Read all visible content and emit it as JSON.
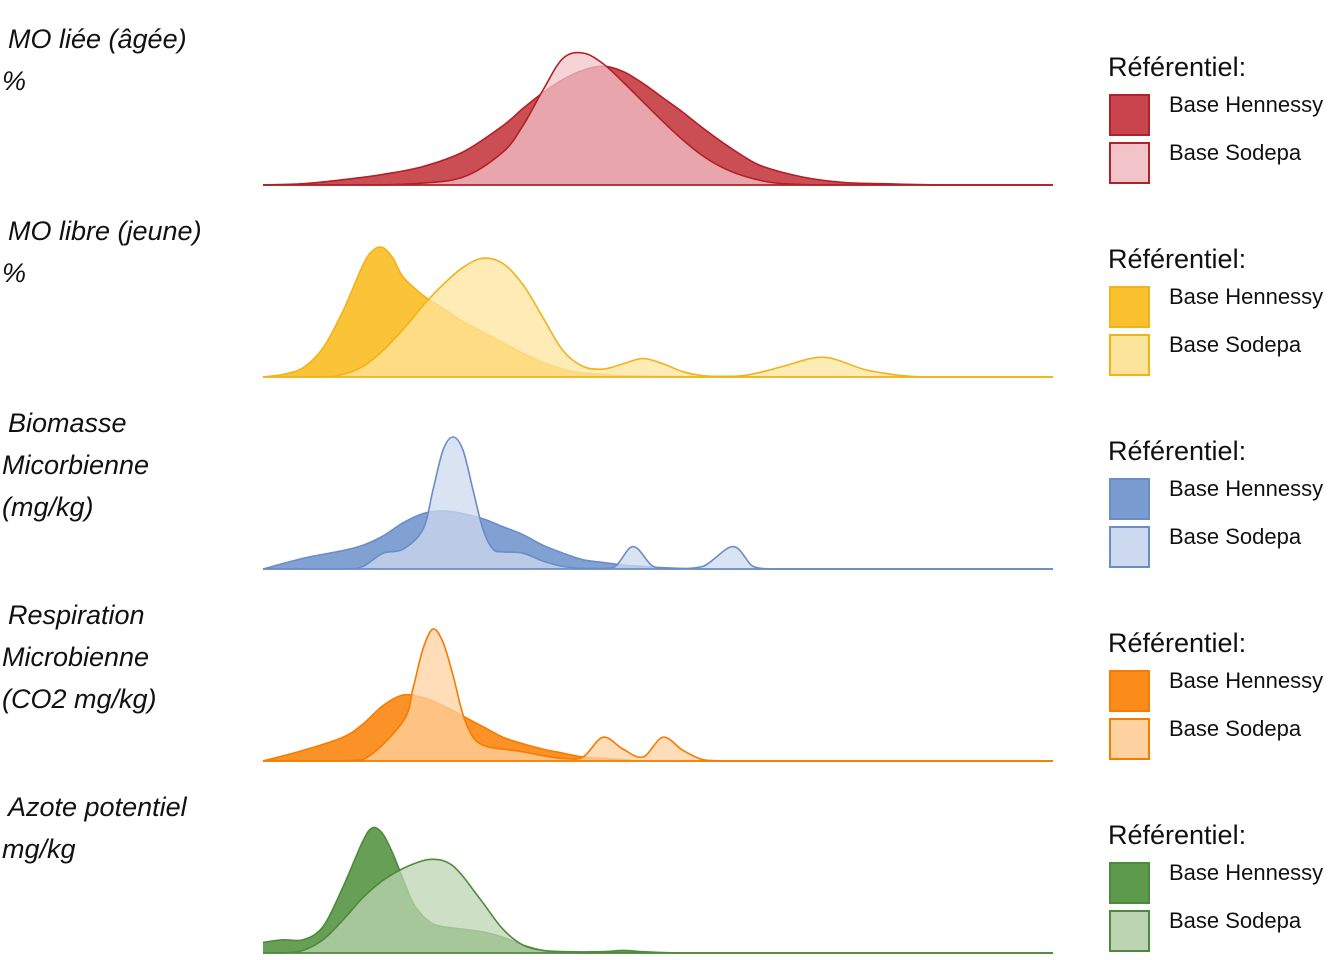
{
  "chart_data": [
    {
      "type": "area",
      "label_lines": [
        "MO liée (âgée)",
        "%"
      ],
      "legend_title": "Référentiel:",
      "series": [
        {
          "name": "Base Hennessy",
          "fill": "#c9444c",
          "stroke": "#b22028",
          "opacity": 0.95,
          "x": [
            0,
            40,
            80,
            120,
            160,
            200,
            240,
            260,
            280,
            300,
            320,
            340,
            360,
            380,
            400,
            420,
            440,
            460,
            480,
            500,
            540,
            580,
            620,
            680,
            740,
            790
          ],
          "y": [
            0,
            0.01,
            0.04,
            0.08,
            0.14,
            0.25,
            0.45,
            0.58,
            0.7,
            0.8,
            0.87,
            0.9,
            0.86,
            0.77,
            0.66,
            0.55,
            0.43,
            0.32,
            0.22,
            0.14,
            0.06,
            0.02,
            0.01,
            0,
            0,
            0
          ]
        },
        {
          "name": "Base Sodepa",
          "fill": "#f1c4c9",
          "stroke": "#b22028",
          "opacity": 0.75,
          "x": [
            0,
            100,
            150,
            200,
            240,
            260,
            280,
            300,
            320,
            340,
            360,
            380,
            400,
            420,
            440,
            460,
            480,
            500,
            520,
            560,
            600,
            650,
            700,
            790
          ],
          "y": [
            0,
            0,
            0.01,
            0.06,
            0.25,
            0.45,
            0.72,
            0.96,
            1.0,
            0.92,
            0.78,
            0.63,
            0.48,
            0.34,
            0.22,
            0.13,
            0.07,
            0.03,
            0.01,
            0,
            0,
            0,
            0,
            0
          ]
        }
      ]
    },
    {
      "type": "area",
      "label_lines": [
        "MO libre (jeune)",
        "%"
      ],
      "legend_title": "Référentiel:",
      "series": [
        {
          "name": "Base Hennessy",
          "fill": "#fbc02d",
          "stroke": "#f2b21a",
          "opacity": 0.95,
          "x": [
            0,
            20,
            40,
            60,
            80,
            100,
            110,
            120,
            130,
            140,
            160,
            180,
            200,
            220,
            240,
            260,
            280,
            300,
            320,
            340,
            360,
            400,
            440,
            480,
            520,
            580,
            640,
            700,
            790
          ],
          "y": [
            0,
            0.02,
            0.07,
            0.22,
            0.5,
            0.85,
            0.96,
            0.98,
            0.9,
            0.76,
            0.62,
            0.52,
            0.42,
            0.34,
            0.26,
            0.18,
            0.11,
            0.06,
            0.03,
            0.02,
            0.01,
            0.005,
            0,
            0,
            0,
            0,
            0,
            0,
            0
          ]
        },
        {
          "name": "Base Sodepa",
          "fill": "#fde49c",
          "stroke": "#f2b21a",
          "opacity": 0.75,
          "x": [
            0,
            60,
            80,
            100,
            120,
            140,
            160,
            180,
            200,
            220,
            240,
            260,
            280,
            300,
            320,
            340,
            360,
            380,
            400,
            420,
            440,
            460,
            480,
            500,
            520,
            560,
            600,
            620,
            640,
            660,
            680,
            720,
            790
          ],
          "y": [
            0,
            0,
            0.02,
            0.08,
            0.2,
            0.36,
            0.54,
            0.7,
            0.83,
            0.9,
            0.86,
            0.7,
            0.45,
            0.2,
            0.08,
            0.06,
            0.1,
            0.14,
            0.1,
            0.04,
            0.01,
            0.005,
            0.01,
            0.04,
            0.08,
            0.15,
            0.06,
            0.03,
            0.01,
            0,
            0,
            0,
            0
          ]
        }
      ]
    },
    {
      "type": "area",
      "label_lines": [
        "Biomasse",
        "Micorbienne",
        "(mg/kg)"
      ],
      "legend_title": "Référentiel:",
      "series": [
        {
          "name": "Base Hennessy",
          "fill": "#7b9cd1",
          "stroke": "#6a8cc8",
          "opacity": 0.95,
          "x": [
            0,
            40,
            80,
            100,
            120,
            140,
            160,
            180,
            200,
            220,
            240,
            260,
            280,
            300,
            320,
            340,
            360,
            380,
            400,
            440,
            480,
            560,
            620,
            700,
            790
          ],
          "y": [
            0,
            0.08,
            0.14,
            0.18,
            0.25,
            0.35,
            0.42,
            0.44,
            0.42,
            0.38,
            0.32,
            0.26,
            0.18,
            0.12,
            0.07,
            0.05,
            0.03,
            0.02,
            0.01,
            0,
            0,
            0,
            0,
            0,
            0
          ]
        },
        {
          "name": "Base Sodepa",
          "fill": "#cdd9ee",
          "stroke": "#6a8cc8",
          "opacity": 0.75,
          "x": [
            0,
            80,
            100,
            120,
            140,
            160,
            170,
            180,
            190,
            200,
            210,
            220,
            230,
            240,
            260,
            280,
            300,
            320,
            350,
            370,
            390,
            410,
            440,
            470,
            490,
            510,
            540,
            600,
            790
          ],
          "y": [
            0,
            0,
            0.02,
            0.12,
            0.15,
            0.3,
            0.6,
            0.9,
            1.0,
            0.9,
            0.6,
            0.3,
            0.15,
            0.13,
            0.12,
            0.06,
            0.02,
            0.005,
            0.01,
            0.17,
            0.02,
            0,
            0.02,
            0.17,
            0.02,
            0,
            0,
            0,
            0
          ]
        }
      ]
    },
    {
      "type": "area",
      "label_lines": [
        "Respiration",
        "Microbienne",
        "(CO2 mg/kg)"
      ],
      "legend_title": "Référentiel:",
      "series": [
        {
          "name": "Base Hennessy",
          "fill": "#fb8c1b",
          "stroke": "#f57c00",
          "opacity": 0.95,
          "x": [
            0,
            40,
            80,
            100,
            120,
            140,
            160,
            180,
            200,
            220,
            240,
            260,
            280,
            300,
            320,
            340,
            360,
            380,
            400,
            440,
            480,
            540,
            600,
            700,
            790
          ],
          "y": [
            0,
            0.08,
            0.18,
            0.28,
            0.42,
            0.5,
            0.48,
            0.42,
            0.34,
            0.26,
            0.18,
            0.13,
            0.09,
            0.06,
            0.03,
            0.02,
            0.01,
            0,
            0,
            0,
            0,
            0,
            0,
            0,
            0
          ]
        },
        {
          "name": "Base Sodepa",
          "fill": "#ffd2a1",
          "stroke": "#f57c00",
          "opacity": 0.75,
          "x": [
            0,
            60,
            100,
            140,
            150,
            160,
            170,
            180,
            190,
            200,
            210,
            220,
            230,
            240,
            260,
            280,
            300,
            320,
            340,
            360,
            380,
            400,
            420,
            440,
            460,
            480,
            500,
            520,
            600,
            790
          ],
          "y": [
            0,
            0,
            0.01,
            0.3,
            0.55,
            0.85,
            1.0,
            0.9,
            0.65,
            0.35,
            0.18,
            0.12,
            0.1,
            0.09,
            0.07,
            0.04,
            0.02,
            0.03,
            0.18,
            0.09,
            0.03,
            0.18,
            0.08,
            0.01,
            0,
            0,
            0,
            0,
            0,
            0
          ]
        }
      ]
    },
    {
      "type": "area",
      "label_lines": [
        "Azote potentiel",
        "mg/kg"
      ],
      "legend_title": "Référentiel:",
      "series": [
        {
          "name": "Base Hennessy",
          "fill": "#5e9a4c",
          "stroke": "#4e8a3c",
          "opacity": 0.95,
          "x": [
            0,
            20,
            40,
            60,
            80,
            100,
            110,
            120,
            130,
            140,
            150,
            160,
            170,
            180,
            200,
            220,
            240,
            260,
            280,
            300,
            340,
            360,
            380,
            420,
            500,
            790
          ],
          "y": [
            0.08,
            0.1,
            0.1,
            0.2,
            0.5,
            0.85,
            0.95,
            0.9,
            0.75,
            0.56,
            0.38,
            0.28,
            0.22,
            0.2,
            0.18,
            0.16,
            0.12,
            0.06,
            0.02,
            0.01,
            0.01,
            0.02,
            0.01,
            0,
            0,
            0
          ]
        },
        {
          "name": "Base Sodepa",
          "fill": "#bcd4b1",
          "stroke": "#4e8a3c",
          "opacity": 0.75,
          "x": [
            0,
            20,
            40,
            60,
            80,
            100,
            120,
            140,
            160,
            170,
            180,
            190,
            200,
            210,
            220,
            240,
            260,
            280,
            300,
            320,
            340,
            360,
            420,
            500,
            790
          ],
          "y": [
            0,
            0,
            0.02,
            0.1,
            0.25,
            0.42,
            0.55,
            0.64,
            0.7,
            0.71,
            0.7,
            0.66,
            0.58,
            0.48,
            0.38,
            0.18,
            0.06,
            0.02,
            0.01,
            0,
            0,
            0,
            0,
            0,
            0
          ]
        }
      ]
    }
  ]
}
